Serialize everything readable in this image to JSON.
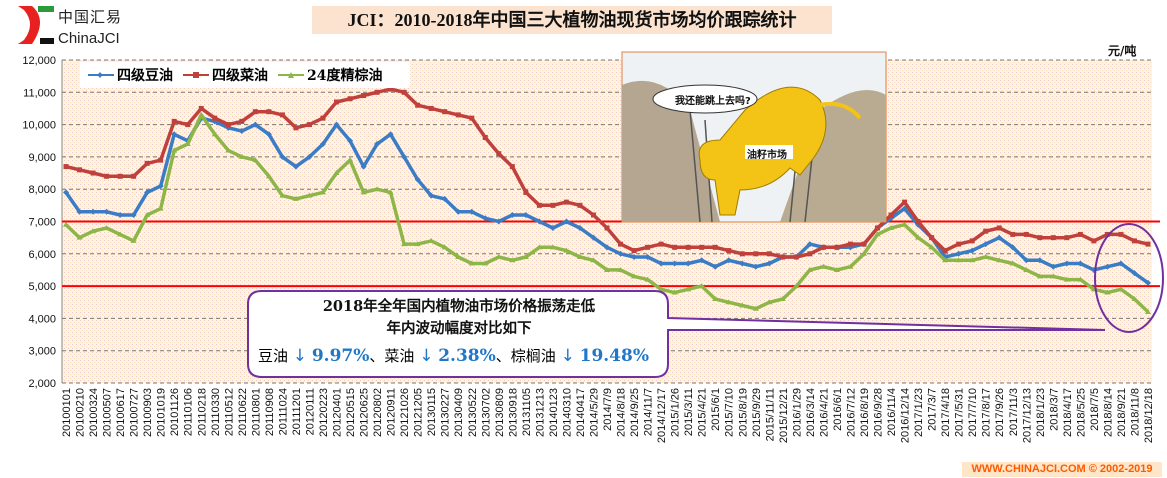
{
  "header": {
    "logo_cn": "中国汇易",
    "logo_en": "ChinaJCI",
    "title": "JCI：2010-2018年中国三大植物油现货市场均价跟踪统计",
    "unit": "元/吨"
  },
  "cartoon": {
    "speech": "我还能跳上去吗?",
    "label": "油籽市场"
  },
  "callout": {
    "line1": "2018年全年国内植物油市场价格振荡走低",
    "line2": "年内波动幅度对比如下",
    "items": [
      {
        "name": "豆油",
        "arrow": "↓",
        "pct": "9.97%"
      },
      {
        "name": "、菜油",
        "arrow": "↓",
        "pct": "2.38%"
      },
      {
        "name": "、棕榈油",
        "arrow": "↓",
        "pct": "19.48%"
      }
    ]
  },
  "footer": "WWW.CHINAJCI.COM © 2002-2019",
  "colors": {
    "soy": "#3a7cc6",
    "rapeseed": "#c0403c",
    "palm": "#8db648",
    "reference": "#ff0000",
    "highlight": "#7030a0"
  },
  "chart_data": {
    "type": "line",
    "title": "JCI：2010-2018年中国三大植物油现货市场均价跟踪统计",
    "ylabel": "元/吨",
    "ylim": [
      2000,
      12000
    ],
    "yticks": [
      "2,000",
      "3,000",
      "4,000",
      "5,000",
      "6,000",
      "7,000",
      "8,000",
      "9,000",
      "10,000",
      "11,000",
      "12,000"
    ],
    "ytick_values": [
      2000,
      3000,
      4000,
      5000,
      6000,
      7000,
      8000,
      9000,
      10000,
      11000,
      12000
    ],
    "grid": true,
    "legend_position": "top-left",
    "reference_lines": [
      7000,
      5000
    ],
    "x": [
      "20100101",
      "20100210",
      "20100324",
      "20100507",
      "20100617",
      "20100727",
      "20100903",
      "20101019",
      "20101126",
      "20110106",
      "20110218",
      "20110330",
      "20110512",
      "20110622",
      "20110801",
      "20110908",
      "20111024",
      "20111201",
      "20120111",
      "20120223",
      "20120401",
      "20120515",
      "20120625",
      "20120802",
      "20120911",
      "20121026",
      "20121205",
      "20130115",
      "20130227",
      "20130409",
      "20130522",
      "20130702",
      "20130809",
      "20130918",
      "20131105",
      "20131213",
      "20140123",
      "20140310",
      "20140417",
      "2014/5/29",
      "2014/7/9",
      "2014/8/18",
      "2014/9/25",
      "2014/11/7",
      "2014/12/17",
      "2015/1/26",
      "2015/3/11",
      "2015/4/21",
      "2015/6/1",
      "2015/7/10",
      "2015/8/19",
      "2015/9/29",
      "2015/11/11",
      "2015/12/21",
      "2016/1/29",
      "2016/3/14",
      "2016/4/21",
      "2016/6/1",
      "2016/7/12",
      "2016/8/19",
      "2016/9/28",
      "2016/11/4",
      "2016/12/14",
      "2017/1/23",
      "2017/3/7",
      "2017/4/18",
      "2017/5/31",
      "2017/7/10",
      "2017/8/17",
      "2017/9/26",
      "2017/11/3",
      "2017/12/13",
      "2018/1/23",
      "2018/3/7",
      "2018/4/17",
      "2018/5/25",
      "2018/7/5",
      "2018/8/14",
      "2018/9/21",
      "2018/11/8",
      "2018/12/18"
    ],
    "series": [
      {
        "name": "四级豆油",
        "marker": "diamond",
        "values": [
          7900,
          7300,
          7300,
          7300,
          7200,
          7200,
          7900,
          8100,
          9700,
          9500,
          10200,
          10100,
          9900,
          9800,
          10000,
          9700,
          9000,
          8700,
          9000,
          9400,
          10000,
          9500,
          8700,
          9400,
          9700,
          9000,
          8300,
          7800,
          7700,
          7300,
          7300,
          7100,
          7000,
          7200,
          7200,
          7000,
          6800,
          7000,
          6800,
          6500,
          6200,
          6000,
          5900,
          5900,
          5700,
          5700,
          5700,
          5800,
          5600,
          5800,
          5700,
          5600,
          5700,
          5900,
          5900,
          6300,
          6200,
          6200,
          6200,
          6300,
          6800,
          7100,
          7400,
          6900,
          6500,
          5900,
          6000,
          6100,
          6300,
          6500,
          6200,
          5800,
          5800,
          5600,
          5700,
          5700,
          5500,
          5600,
          5700,
          5400,
          5100
        ]
      },
      {
        "name": "四级菜油",
        "marker": "square",
        "values": [
          8700,
          8600,
          8500,
          8400,
          8400,
          8400,
          8800,
          8900,
          10100,
          10000,
          10500,
          10200,
          10000,
          10100,
          10400,
          10400,
          10300,
          9900,
          10000,
          10200,
          10700,
          10800,
          10900,
          11000,
          11100,
          11000,
          10600,
          10500,
          10400,
          10300,
          10200,
          9600,
          9100,
          8700,
          7900,
          7500,
          7500,
          7600,
          7500,
          7200,
          6800,
          6300,
          6100,
          6200,
          6300,
          6200,
          6200,
          6200,
          6200,
          6100,
          6000,
          6000,
          6000,
          5900,
          5900,
          6000,
          6200,
          6200,
          6300,
          6300,
          6800,
          7200,
          7600,
          7000,
          6500,
          6100,
          6300,
          6400,
          6700,
          6800,
          6600,
          6600,
          6500,
          6500,
          6500,
          6600,
          6400,
          6600,
          6600,
          6400,
          6300
        ]
      },
      {
        "name": "24度精棕油",
        "marker": "triangle",
        "values": [
          6900,
          6500,
          6700,
          6800,
          6600,
          6400,
          7200,
          7400,
          9200,
          9400,
          10300,
          9700,
          9200,
          9000,
          8900,
          8400,
          7800,
          7700,
          7800,
          7900,
          8500,
          8900,
          7900,
          8000,
          7900,
          6300,
          6300,
          6400,
          6200,
          5900,
          5700,
          5700,
          5900,
          5800,
          5900,
          6200,
          6200,
          6100,
          5900,
          5800,
          5500,
          5500,
          5300,
          5200,
          4900,
          4800,
          4900,
          5000,
          4600,
          4500,
          4400,
          4300,
          4500,
          4600,
          5000,
          5500,
          5600,
          5500,
          5600,
          6000,
          6600,
          6800,
          6900,
          6500,
          6200,
          5800,
          5800,
          5800,
          5900,
          5800,
          5700,
          5500,
          5300,
          5300,
          5200,
          5200,
          4900,
          4800,
          4900,
          4600,
          4200
        ]
      }
    ]
  }
}
